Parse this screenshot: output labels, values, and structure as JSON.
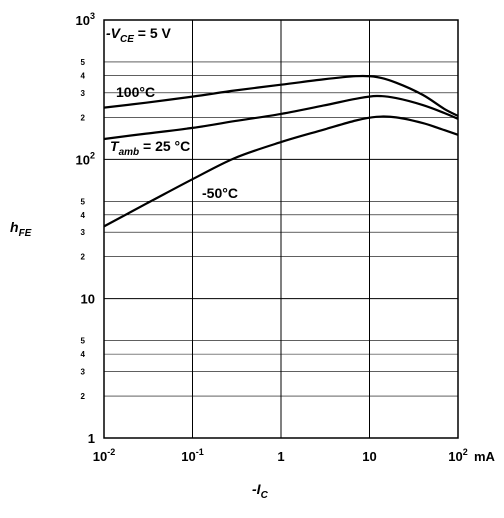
{
  "chart_data": {
    "type": "line",
    "x_scale": "log",
    "y_scale": "log",
    "xlim": [
      0.01,
      100
    ],
    "ylim": [
      1,
      1000
    ],
    "x_unit": "mA",
    "grid": true,
    "ylabel_main": "h",
    "ylabel_sub": "FE",
    "xlabel_main": "-I",
    "xlabel_sub": "C",
    "condition_prefix": "-V",
    "condition_sub": "CE",
    "condition_value": " = 5 V",
    "tamb_main": "T",
    "tamb_sub": "amb",
    "tamb_value": " = 25 °C",
    "x_major_ticks": [
      {
        "value": 0.01,
        "base": "10",
        "exp": "-2"
      },
      {
        "value": 0.1,
        "base": "10",
        "exp": "-1"
      },
      {
        "value": 1,
        "base": "1",
        "exp": ""
      },
      {
        "value": 10,
        "base": "10",
        "exp": ""
      },
      {
        "value": 100,
        "base": "10",
        "exp": "2"
      }
    ],
    "y_major_ticks": [
      {
        "value": 1,
        "base": "1",
        "exp": ""
      },
      {
        "value": 10,
        "base": "10",
        "exp": ""
      },
      {
        "value": 100,
        "base": "10",
        "exp": "2"
      },
      {
        "value": 1000,
        "base": "10",
        "exp": "3"
      }
    ],
    "y_minor_ticks": [
      {
        "value": 2,
        "label": "2"
      },
      {
        "value": 3,
        "label": "3"
      },
      {
        "value": 4,
        "label": "4"
      },
      {
        "value": 5,
        "label": "5"
      },
      {
        "value": 20,
        "label": "2"
      },
      {
        "value": 30,
        "label": "3"
      },
      {
        "value": 40,
        "label": "4"
      },
      {
        "value": 50,
        "label": "5"
      },
      {
        "value": 200,
        "label": "2"
      },
      {
        "value": 300,
        "label": "3"
      },
      {
        "value": 400,
        "label": "4"
      },
      {
        "value": 500,
        "label": "5"
      }
    ],
    "series": [
      {
        "name": "100°C",
        "label": "100°C",
        "x": [
          0.01,
          0.03,
          0.1,
          0.3,
          1,
          3,
          7,
          12,
          20,
          40,
          70,
          100
        ],
        "y": [
          235,
          255,
          282,
          312,
          343,
          375,
          395,
          390,
          355,
          290,
          230,
          205
        ]
      },
      {
        "name": "25°C",
        "label": "",
        "x": [
          0.01,
          0.03,
          0.1,
          0.3,
          1,
          3,
          7,
          12,
          20,
          40,
          70,
          100
        ],
        "y": [
          140,
          153,
          168,
          188,
          212,
          243,
          272,
          285,
          275,
          245,
          215,
          195
        ]
      },
      {
        "name": "-50°C",
        "label": "-50°C",
        "x": [
          0.01,
          0.03,
          0.1,
          0.3,
          1,
          3,
          7,
          12,
          20,
          40,
          70,
          100
        ],
        "y": [
          33,
          48,
          72,
          102,
          133,
          163,
          190,
          202,
          200,
          182,
          162,
          150
        ]
      }
    ]
  }
}
